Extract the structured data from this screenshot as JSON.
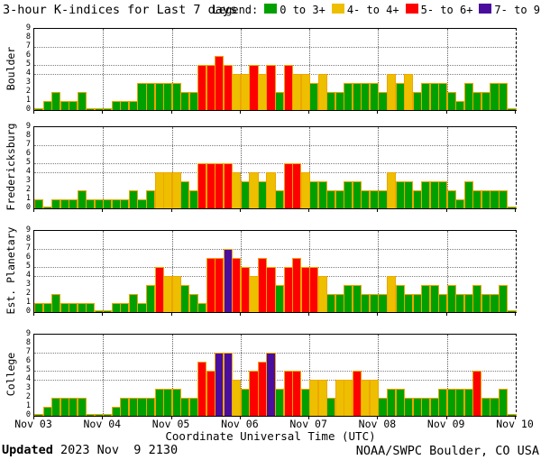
{
  "title": "3-hour K-indices for Last 7 days",
  "legend": {
    "label": "Legend:",
    "items": [
      {
        "label": "0 to 3+",
        "color_name": "green",
        "color": "#00a000"
      },
      {
        "label": "4- to 4+",
        "color_name": "yellow",
        "color": "#edbf00"
      },
      {
        "label": "5- to 6+",
        "color_name": "red",
        "color": "#ff0000"
      },
      {
        "label": "7- to 9",
        "color_name": "purple",
        "color": "#4a0e9e"
      }
    ]
  },
  "footer": {
    "updated_label": "Updated",
    "updated_value": " 2023 Nov  9 2130",
    "credit": "NOAA/SWPC Boulder, CO USA"
  },
  "chart_data": {
    "type": "bar",
    "title": "3-hour K-indices for Last 7 days",
    "xlabel": "Coordinate Universal Time (UTC)",
    "x_tick_labels": [
      "Nov 03",
      "Nov 04",
      "Nov 05",
      "Nov 06",
      "Nov 07",
      "Nov 08",
      "Nov 09",
      "Nov 10"
    ],
    "bars_per_day": 8,
    "bar_interval_hours": 3,
    "ylim": [
      0,
      9
    ],
    "y_tick_labels": [
      "0",
      "1",
      "2",
      "3",
      "4",
      "5",
      "6",
      "7",
      "8",
      "9"
    ],
    "y_dotted_gridlines_at": [
      4,
      5,
      7
    ],
    "grid": true,
    "legend_position": "top-right",
    "k_color_rule": {
      "0-3": "green",
      "4": "yellow",
      "5-6": "red",
      "7-9": "purple"
    },
    "k_colors": {
      "green": "#00a000",
      "yellow": "#edbf00",
      "red": "#ff0000",
      "purple": "#4a0e9e"
    },
    "bar_outline_color": "#f0a500",
    "panels": [
      {
        "station": "Boulder",
        "k_values": [
          0,
          1,
          2,
          1,
          1,
          2,
          0,
          0,
          0,
          1,
          1,
          1,
          3,
          3,
          3,
          3,
          3,
          2,
          2,
          5,
          5,
          6,
          5,
          4,
          4,
          5,
          4,
          5,
          2,
          5,
          4,
          4,
          3,
          4,
          2,
          2,
          3,
          3,
          3,
          3,
          2,
          4,
          3,
          4,
          2,
          3,
          3,
          3,
          2,
          1,
          3,
          2,
          2,
          3,
          3,
          0
        ]
      },
      {
        "station": "Fredericksburg",
        "k_values": [
          1,
          0,
          1,
          1,
          1,
          2,
          1,
          1,
          1,
          1,
          1,
          2,
          1,
          2,
          4,
          4,
          4,
          3,
          2,
          5,
          5,
          5,
          5,
          4,
          3,
          4,
          3,
          4,
          2,
          5,
          5,
          4,
          3,
          3,
          2,
          2,
          3,
          3,
          2,
          2,
          2,
          4,
          3,
          3,
          2,
          3,
          3,
          3,
          2,
          1,
          3,
          2,
          2,
          2,
          2,
          0
        ]
      },
      {
        "station": "Est. Planetary",
        "k_values": [
          1,
          1,
          2,
          1,
          1,
          1,
          1,
          0,
          0,
          1,
          1,
          2,
          1,
          3,
          5,
          4,
          4,
          3,
          2,
          1,
          6,
          6,
          7,
          6,
          5,
          4,
          6,
          5,
          3,
          5,
          6,
          5,
          5,
          4,
          2,
          2,
          3,
          3,
          2,
          2,
          2,
          4,
          3,
          2,
          2,
          3,
          3,
          2,
          3,
          2,
          2,
          3,
          2,
          2,
          3,
          0
        ]
      },
      {
        "station": "College",
        "k_values": [
          0,
          1,
          2,
          2,
          2,
          2,
          0,
          0,
          0,
          1,
          2,
          2,
          2,
          2,
          3,
          3,
          3,
          2,
          2,
          6,
          5,
          7,
          7,
          4,
          3,
          5,
          6,
          7,
          3,
          5,
          5,
          3,
          4,
          4,
          2,
          4,
          4,
          5,
          4,
          4,
          2,
          3,
          3,
          2,
          2,
          2,
          2,
          3,
          3,
          3,
          3,
          5,
          2,
          2,
          3,
          0
        ]
      }
    ]
  }
}
